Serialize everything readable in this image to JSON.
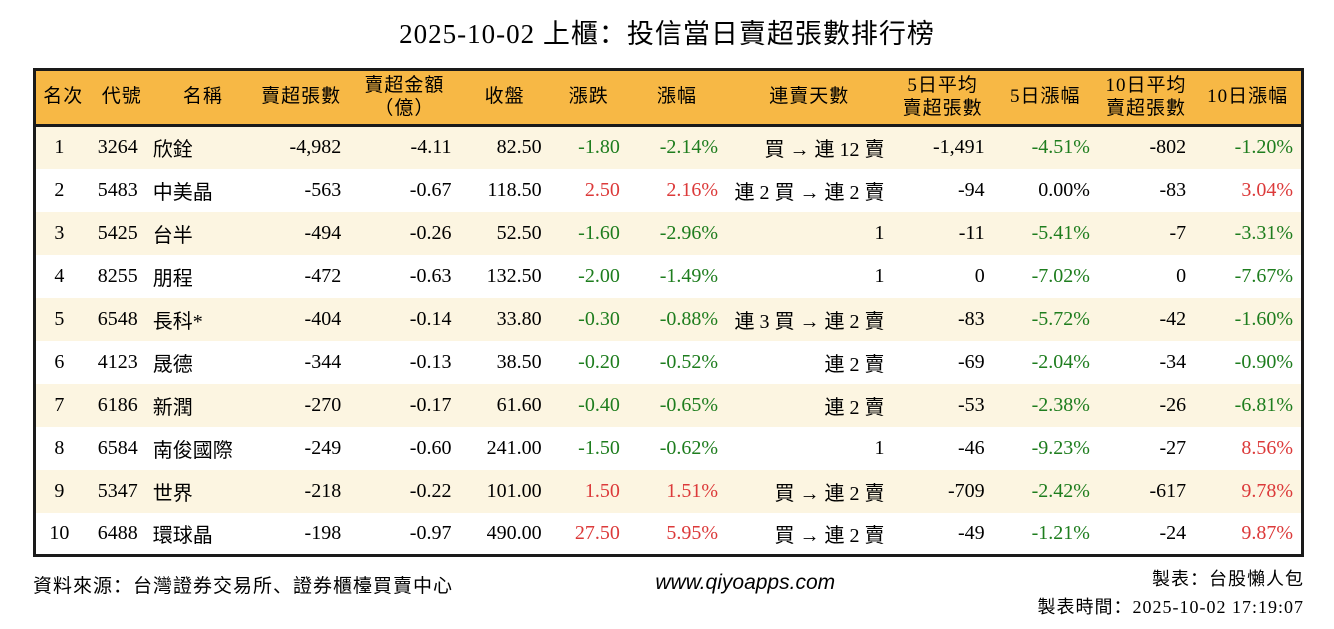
{
  "title": "2025-10-02 上櫃：投信當日賣超張數排行榜",
  "colors": {
    "up_red": "#dc3a3a",
    "down_green": "#1e7d1e",
    "header_bg": "#f7b845",
    "row_alt_bg": "#fcf5e1",
    "border": "#1a1a1a"
  },
  "table": {
    "headers": [
      {
        "key": "rank",
        "label": "名次",
        "label2": "",
        "align": "ac"
      },
      {
        "key": "code",
        "label": "代號",
        "label2": "",
        "align": "ac"
      },
      {
        "key": "name",
        "label": "名稱",
        "label2": "",
        "align": "al"
      },
      {
        "key": "sell-volume",
        "label": "賣超張數",
        "label2": "",
        "align": "ar"
      },
      {
        "key": "sell-amount",
        "label": "賣超金額",
        "label2": "（億）",
        "align": "ar"
      },
      {
        "key": "close",
        "label": "收盤",
        "label2": "",
        "align": "ar"
      },
      {
        "key": "change",
        "label": "漲跌",
        "label2": "",
        "align": "ar"
      },
      {
        "key": "change-pct",
        "label": "漲幅",
        "label2": "",
        "align": "ar"
      },
      {
        "key": "sell-streak",
        "label": "連賣天數",
        "label2": "",
        "align": "ar"
      },
      {
        "key": "avg5-sell",
        "label": "5日平均",
        "label2": "賣超張數",
        "align": "ar"
      },
      {
        "key": "chg5-pct",
        "label": "5日漲幅",
        "label2": "",
        "align": "ar"
      },
      {
        "key": "avg10-sell",
        "label": "10日平均",
        "label2": "賣超張數",
        "align": "ar"
      },
      {
        "key": "chg10-pct",
        "label": "10日漲幅",
        "label2": "",
        "align": "ar"
      }
    ],
    "rows": [
      {
        "cells": [
          "1",
          "3264",
          "欣銓",
          "-4,982",
          "-4.11",
          "82.50",
          "-1.80",
          "-2.14%",
          "買 → 連 12 賣",
          "-1,491",
          "-4.51%",
          "-802",
          "-1.20%"
        ],
        "tones": [
          "",
          "",
          "",
          "",
          "",
          "",
          "down",
          "down",
          "",
          "",
          "down",
          "",
          "down"
        ]
      },
      {
        "cells": [
          "2",
          "5483",
          "中美晶",
          "-563",
          "-0.67",
          "118.50",
          "2.50",
          "2.16%",
          "連 2 買 → 連 2 賣",
          "-94",
          "0.00%",
          "-83",
          "3.04%"
        ],
        "tones": [
          "",
          "",
          "",
          "",
          "",
          "",
          "up",
          "up",
          "",
          "",
          "",
          "",
          "up"
        ]
      },
      {
        "cells": [
          "3",
          "5425",
          "台半",
          "-494",
          "-0.26",
          "52.50",
          "-1.60",
          "-2.96%",
          "1",
          "-11",
          "-5.41%",
          "-7",
          "-3.31%"
        ],
        "tones": [
          "",
          "",
          "",
          "",
          "",
          "",
          "down",
          "down",
          "",
          "",
          "down",
          "",
          "down"
        ]
      },
      {
        "cells": [
          "4",
          "8255",
          "朋程",
          "-472",
          "-0.63",
          "132.50",
          "-2.00",
          "-1.49%",
          "1",
          "0",
          "-7.02%",
          "0",
          "-7.67%"
        ],
        "tones": [
          "",
          "",
          "",
          "",
          "",
          "",
          "down",
          "down",
          "",
          "",
          "down",
          "",
          "down"
        ]
      },
      {
        "cells": [
          "5",
          "6548",
          "長科*",
          "-404",
          "-0.14",
          "33.80",
          "-0.30",
          "-0.88%",
          "連 3 買 → 連 2 賣",
          "-83",
          "-5.72%",
          "-42",
          "-1.60%"
        ],
        "tones": [
          "",
          "",
          "",
          "",
          "",
          "",
          "down",
          "down",
          "",
          "",
          "down",
          "",
          "down"
        ]
      },
      {
        "cells": [
          "6",
          "4123",
          "晟德",
          "-344",
          "-0.13",
          "38.50",
          "-0.20",
          "-0.52%",
          "連 2 賣",
          "-69",
          "-2.04%",
          "-34",
          "-0.90%"
        ],
        "tones": [
          "",
          "",
          "",
          "",
          "",
          "",
          "down",
          "down",
          "",
          "",
          "down",
          "",
          "down"
        ]
      },
      {
        "cells": [
          "7",
          "6186",
          "新潤",
          "-270",
          "-0.17",
          "61.60",
          "-0.40",
          "-0.65%",
          "連 2 賣",
          "-53",
          "-2.38%",
          "-26",
          "-6.81%"
        ],
        "tones": [
          "",
          "",
          "",
          "",
          "",
          "",
          "down",
          "down",
          "",
          "",
          "down",
          "",
          "down"
        ]
      },
      {
        "cells": [
          "8",
          "6584",
          "南俊國際",
          "-249",
          "-0.60",
          "241.00",
          "-1.50",
          "-0.62%",
          "1",
          "-46",
          "-9.23%",
          "-27",
          "8.56%"
        ],
        "tones": [
          "",
          "",
          "",
          "",
          "",
          "",
          "down",
          "down",
          "",
          "",
          "down",
          "",
          "up"
        ]
      },
      {
        "cells": [
          "9",
          "5347",
          "世界",
          "-218",
          "-0.22",
          "101.00",
          "1.50",
          "1.51%",
          "買 → 連 2 賣",
          "-709",
          "-2.42%",
          "-617",
          "9.78%"
        ],
        "tones": [
          "",
          "",
          "",
          "",
          "",
          "",
          "up",
          "up",
          "",
          "",
          "down",
          "",
          "up"
        ]
      },
      {
        "cells": [
          "10",
          "6488",
          "環球晶",
          "-198",
          "-0.97",
          "490.00",
          "27.50",
          "5.95%",
          "買 → 連 2 賣",
          "-49",
          "-1.21%",
          "-24",
          "9.87%"
        ],
        "tones": [
          "",
          "",
          "",
          "",
          "",
          "",
          "up",
          "up",
          "",
          "",
          "down",
          "",
          "up"
        ]
      }
    ]
  },
  "footer": {
    "source": "資料來源：台灣證券交易所、證券櫃檯買賣中心",
    "website": "www.qiyoapps.com",
    "maker": "製表：台股懶人包",
    "timestamp": "製表時間：2025-10-02 17:19:07"
  }
}
